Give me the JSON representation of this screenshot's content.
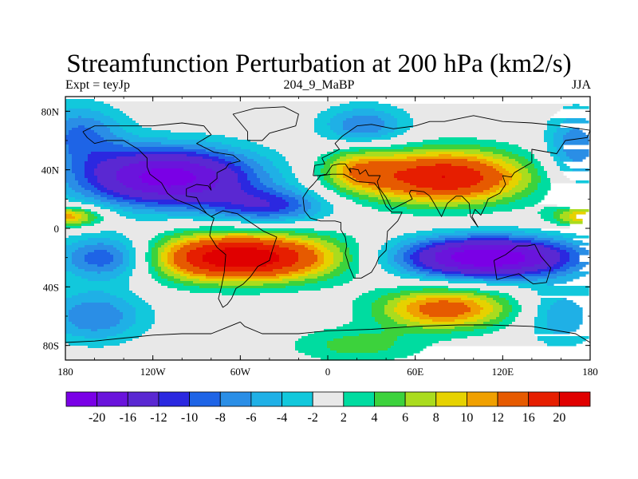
{
  "chart_data": {
    "type": "heatmap",
    "title": "Streamfunction Perturbation at 200 hPa (km2/s)",
    "left_string": "Expt = teyJp",
    "center_string": "204_9_MaBP",
    "right_string": "JJA",
    "x_range": [
      -180,
      180
    ],
    "y_range": [
      -90,
      90
    ],
    "x_ticks": [
      {
        "value": -180,
        "label": "180"
      },
      {
        "value": -120,
        "label": "120W"
      },
      {
        "value": -60,
        "label": "60W"
      },
      {
        "value": 0,
        "label": "0"
      },
      {
        "value": 60,
        "label": "60E"
      },
      {
        "value": 120,
        "label": "120E"
      },
      {
        "value": 180,
        "label": "180"
      }
    ],
    "y_ticks": [
      {
        "value": 80,
        "label": "80N"
      },
      {
        "value": 40,
        "label": "40N"
      },
      {
        "value": 0,
        "label": "0"
      },
      {
        "value": -40,
        "label": "40S"
      },
      {
        "value": -80,
        "label": "80S"
      }
    ],
    "contour_levels": [
      -20,
      -16,
      -12,
      -10,
      -8,
      -6,
      -4,
      -2,
      2,
      4,
      6,
      8,
      10,
      12,
      16,
      20
    ],
    "colorbar_labels": [
      "-20",
      "-16",
      "-12",
      "-10",
      "-8",
      "-6",
      "-4",
      "-2",
      "2",
      "4",
      "6",
      "8",
      "10",
      "12",
      "16",
      "20"
    ],
    "colors": [
      "#7a00e6",
      "#6a14dc",
      "#5a28d2",
      "#2b28e0",
      "#1e64e6",
      "#2a8ee6",
      "#1fb0e6",
      "#12c8dc",
      "#e8e8e8",
      "#00dca0",
      "#3cd23c",
      "#aadc1e",
      "#e6d200",
      "#f0a000",
      "#e65a00",
      "#e61e00",
      "#e00000"
    ],
    "field_centers": [
      {
        "lon": -110,
        "lat": 35,
        "value": -22,
        "lon_halfwidth": 60,
        "lat_halfwidth": 20
      },
      {
        "lon": -40,
        "lat": 15,
        "value": -10,
        "lon_halfwidth": 40,
        "lat_halfwidth": 12
      },
      {
        "lon": 25,
        "lat": 70,
        "value": -8,
        "lon_halfwidth": 30,
        "lat_halfwidth": 14
      },
      {
        "lon": -170,
        "lat": 65,
        "value": -8,
        "lon_halfwidth": 30,
        "lat_halfwidth": 20
      },
      {
        "lon": 170,
        "lat": 55,
        "value": -8,
        "lon_halfwidth": 20,
        "lat_halfwidth": 25
      },
      {
        "lon": 80,
        "lat": 35,
        "value": 20,
        "lon_halfwidth": 55,
        "lat_halfwidth": 18
      },
      {
        "lon": 20,
        "lat": 40,
        "value": 8,
        "lon_halfwidth": 25,
        "lat_halfwidth": 15
      },
      {
        "lon": -180,
        "lat": 8,
        "value": 12,
        "lon_halfwidth": 25,
        "lat_halfwidth": 7
      },
      {
        "lon": 180,
        "lat": 8,
        "value": 12,
        "lon_halfwidth": 25,
        "lat_halfwidth": 7
      },
      {
        "lon": -60,
        "lat": -20,
        "value": 24,
        "lon_halfwidth": 65,
        "lat_halfwidth": 16
      },
      {
        "lon": -150,
        "lat": -20,
        "value": -12,
        "lon_halfwidth": 35,
        "lat_halfwidth": 15
      },
      {
        "lon": -160,
        "lat": -60,
        "value": -8,
        "lon_halfwidth": 35,
        "lat_halfwidth": 18
      },
      {
        "lon": 110,
        "lat": -20,
        "value": -24,
        "lon_halfwidth": 60,
        "lat_halfwidth": 14
      },
      {
        "lon": 80,
        "lat": -55,
        "value": 14,
        "lon_halfwidth": 45,
        "lat_halfwidth": 14
      },
      {
        "lon": 20,
        "lat": -80,
        "value": 5,
        "lon_halfwidth": 45,
        "lat_halfwidth": 12
      },
      {
        "lon": 160,
        "lat": -60,
        "value": -6,
        "lon_halfwidth": 25,
        "lat_halfwidth": 20
      }
    ]
  }
}
